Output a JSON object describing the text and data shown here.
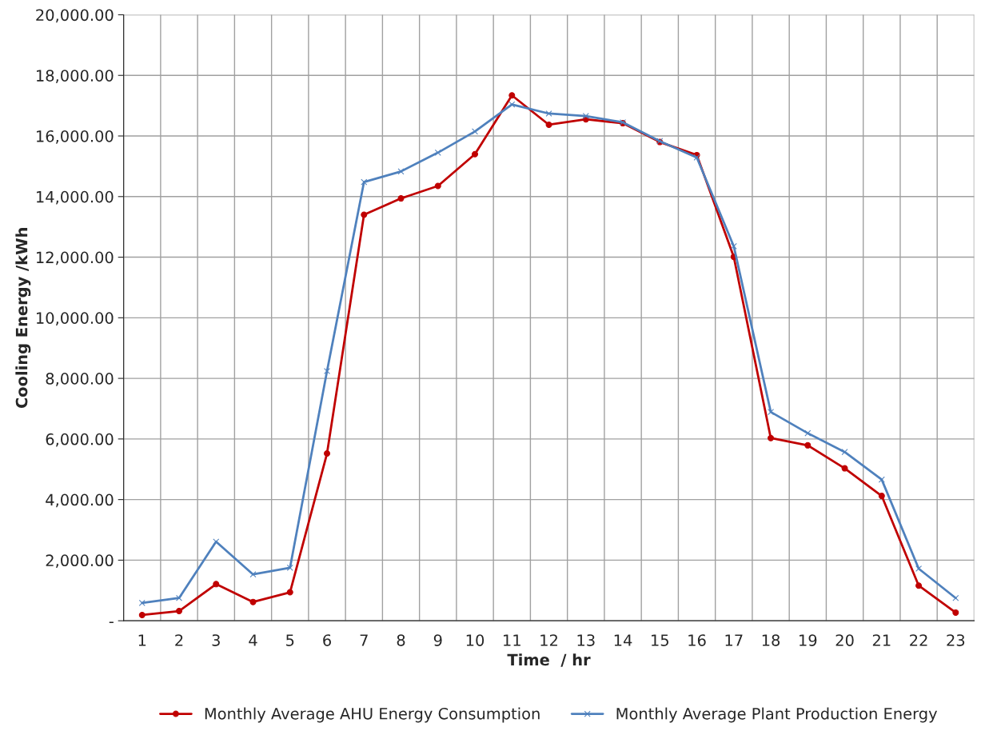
{
  "chart_data": {
    "type": "line",
    "xlabel": "Time  / hr",
    "ylabel": "Cooling Energy /kWh",
    "categories": [
      "1",
      "2",
      "3",
      "4",
      "5",
      "6",
      "7",
      "8",
      "9",
      "10",
      "11",
      "12",
      "13",
      "14",
      "15",
      "16",
      "17",
      "18",
      "19",
      "20",
      "21",
      "22",
      "23"
    ],
    "series": [
      {
        "name": "Monthly Average AHU Energy Consumption",
        "color": "#c00000",
        "marker": "circle",
        "values": [
          190,
          320,
          1210,
          620,
          940,
          5520,
          13400,
          13940,
          14350,
          15400,
          17340,
          16370,
          16550,
          16420,
          15800,
          15370,
          12010,
          6030,
          5790,
          5030,
          4120,
          1160,
          270
        ]
      },
      {
        "name": "Monthly Average Plant Production Energy",
        "color": "#4f81bd",
        "marker": "cross",
        "values": [
          590,
          750,
          2610,
          1530,
          1750,
          8240,
          14480,
          14830,
          15450,
          16150,
          17040,
          16740,
          16660,
          16450,
          15830,
          15290,
          12360,
          6890,
          6190,
          5570,
          4660,
          1720,
          750
        ]
      }
    ],
    "ylim": [
      0,
      20000
    ],
    "yticks": [
      {
        "value": 0,
        "label": "-"
      },
      {
        "value": 2000,
        "label": "2,000.00"
      },
      {
        "value": 4000,
        "label": "4,000.00"
      },
      {
        "value": 6000,
        "label": "6,000.00"
      },
      {
        "value": 8000,
        "label": "8,000.00"
      },
      {
        "value": 10000,
        "label": "10,000.00"
      },
      {
        "value": 12000,
        "label": "12,000.00"
      },
      {
        "value": 14000,
        "label": "14,000.00"
      },
      {
        "value": 16000,
        "label": "16,000.00"
      },
      {
        "value": 18000,
        "label": "18,000.00"
      },
      {
        "value": 20000,
        "label": "20,000.00"
      }
    ],
    "grid": true,
    "legend": "bottom"
  }
}
